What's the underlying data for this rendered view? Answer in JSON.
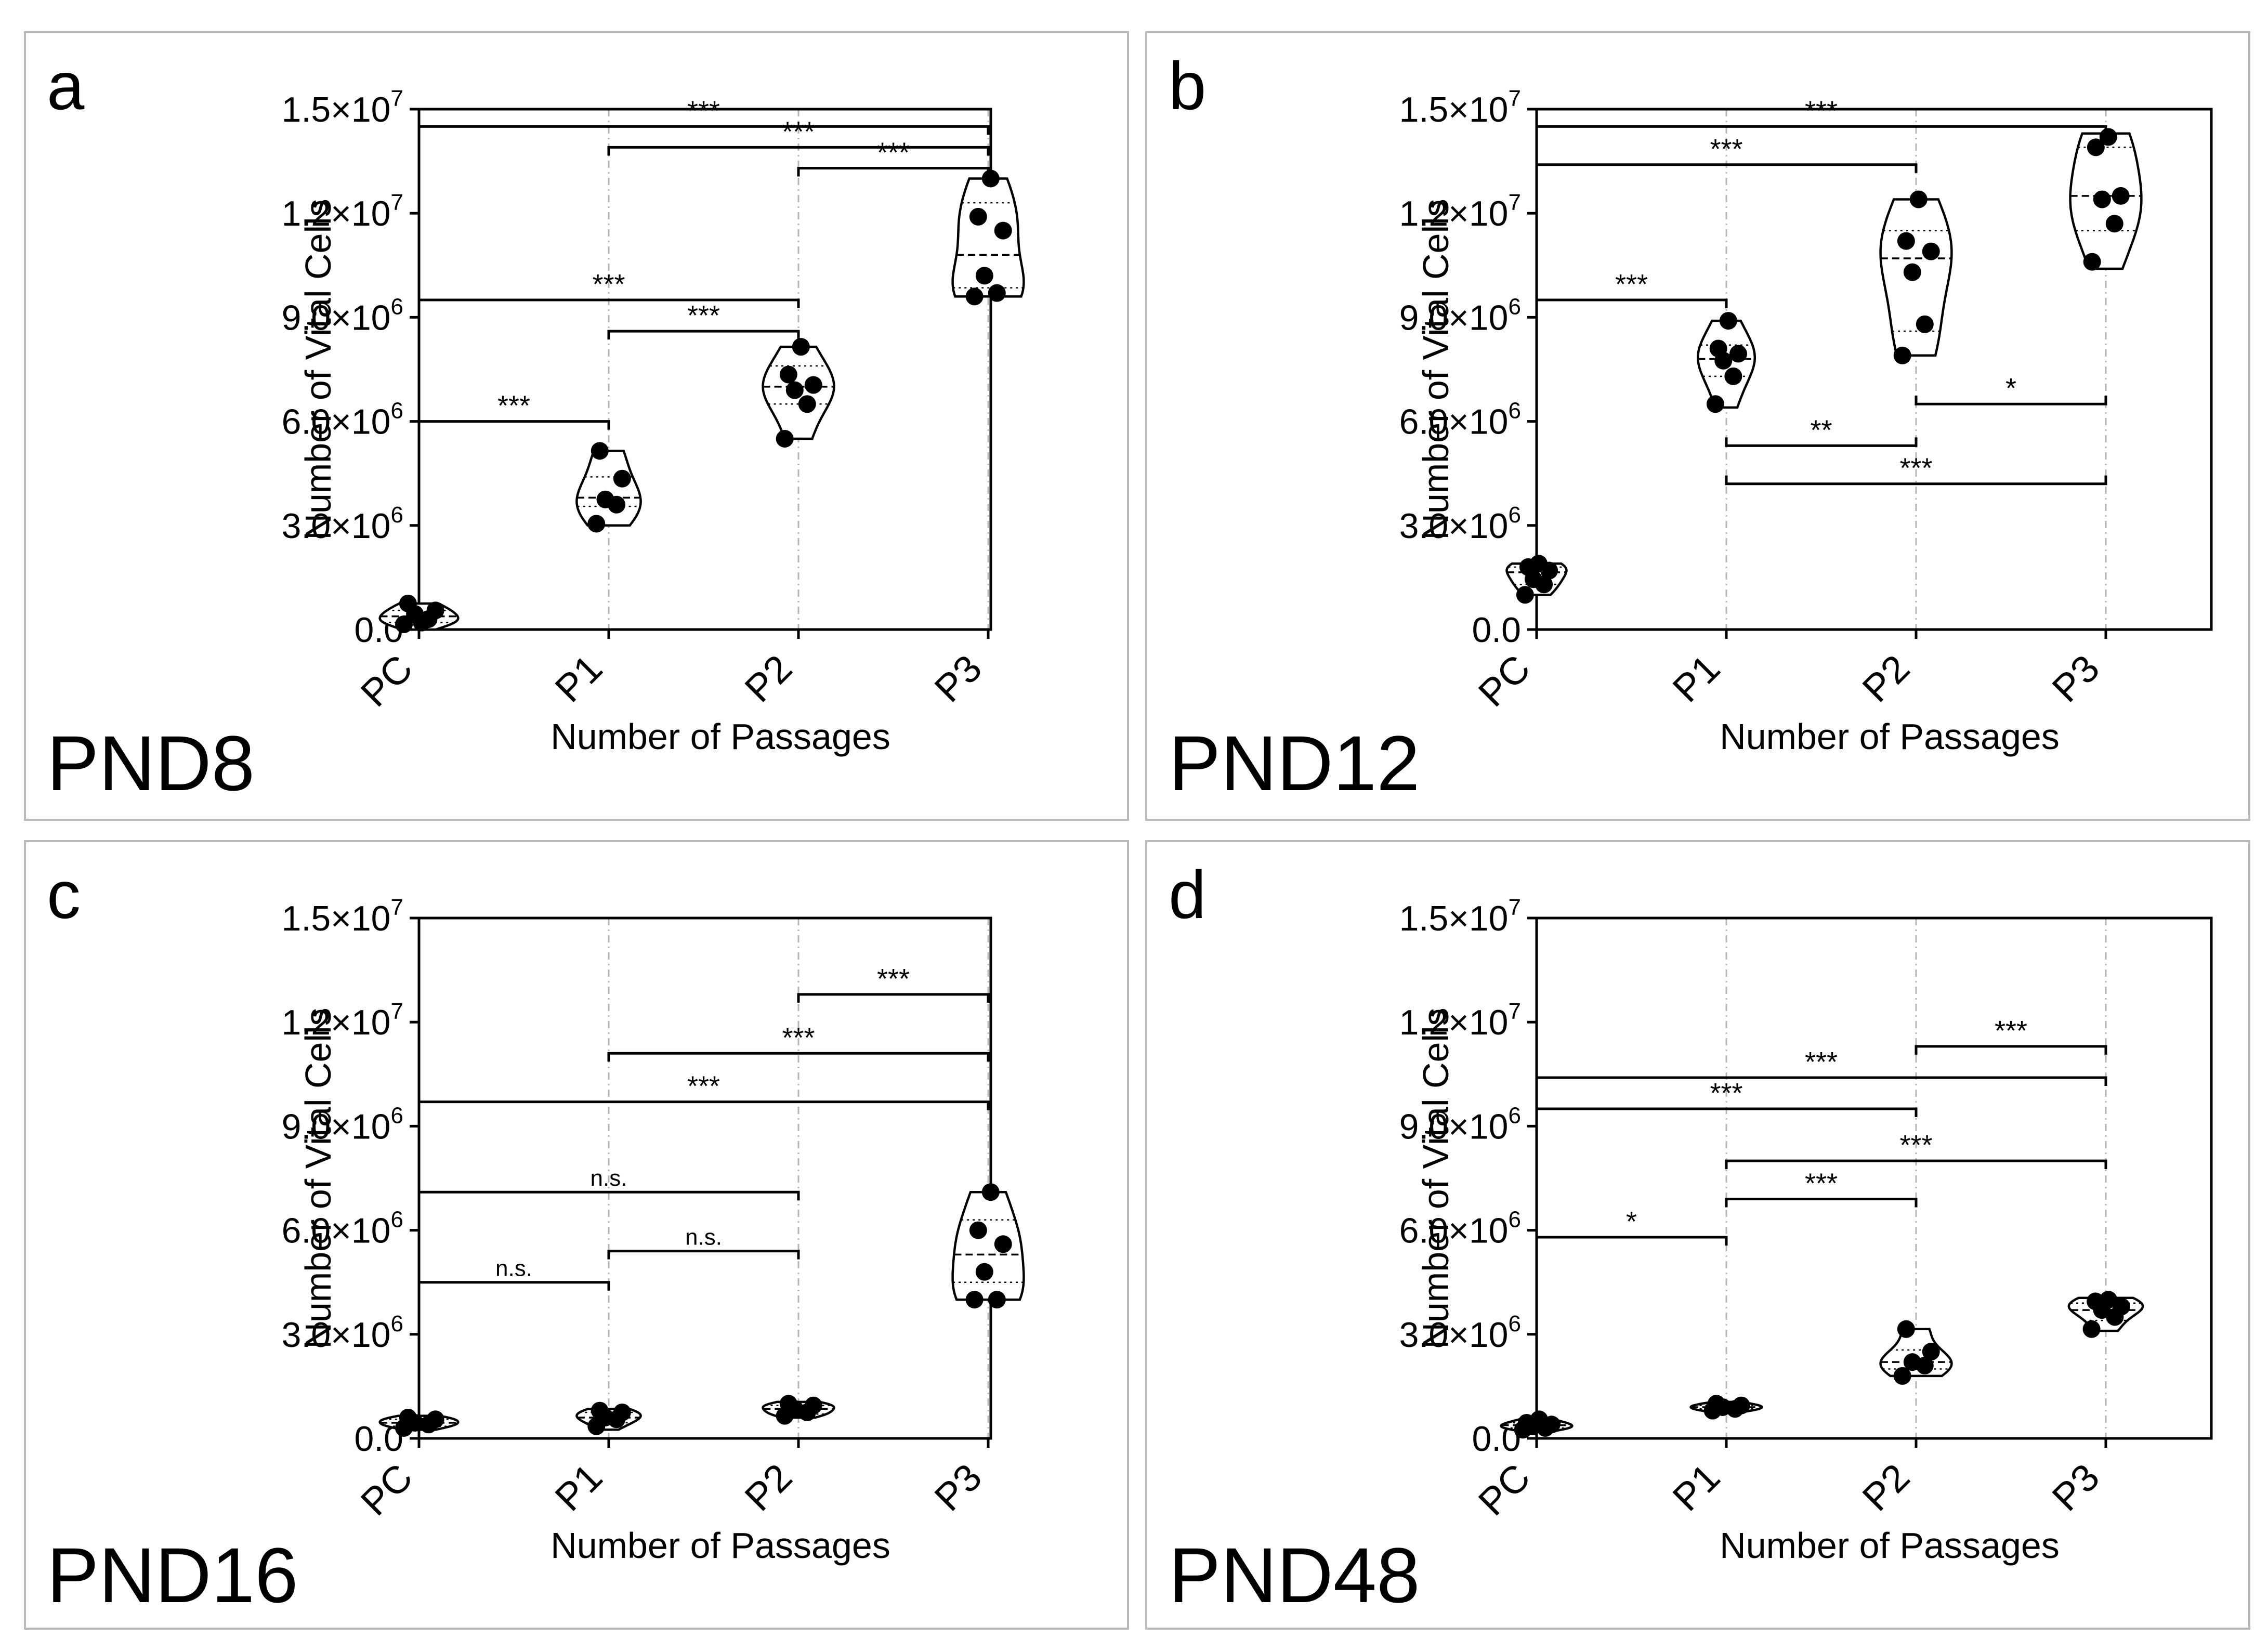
{
  "figure": {
    "description_free": true
  },
  "chart_data": [
    {
      "type": "violin",
      "panel": "a",
      "day_label": "PND8",
      "xlabel": "Number of Passages",
      "ylabel": "Number of Vital Cells",
      "categories": [
        "PC",
        "P1",
        "P2",
        "P3"
      ],
      "ylim": [
        0,
        15000000
      ],
      "yticks": [
        {
          "value": 0,
          "label": "0.0",
          "exp": ""
        },
        {
          "value": 3000000,
          "label": "3.0×10",
          "exp": "6"
        },
        {
          "value": 6000000,
          "label": "6.0×10",
          "exp": "6"
        },
        {
          "value": 9000000,
          "label": "9.0×10",
          "exp": "6"
        },
        {
          "value": 12000000,
          "label": "1.2×10",
          "exp": "7"
        },
        {
          "value": 15000000,
          "label": "1.5×10",
          "exp": "7"
        }
      ],
      "groups": [
        {
          "name": "PC",
          "values": [
            150000,
            300000,
            450000,
            550000,
            750000,
            200000
          ],
          "min": 0,
          "max": 750000,
          "median": 380000,
          "q1": 200000,
          "q3": 550000,
          "width": 0.55
        },
        {
          "name": "P1",
          "values": [
            3050000,
            3600000,
            3750000,
            4350000,
            5150000
          ],
          "min": 3000000,
          "max": 5150000,
          "median": 3800000,
          "q1": 3550000,
          "q3": 4400000,
          "width": 0.45
        },
        {
          "name": "P2",
          "values": [
            5500000,
            6500000,
            6900000,
            7050000,
            7350000,
            8150000
          ],
          "min": 5500000,
          "max": 8150000,
          "median": 7000000,
          "q1": 6500000,
          "q3": 7600000,
          "width": 0.5
        },
        {
          "name": "P3",
          "values": [
            9600000,
            9700000,
            10200000,
            11500000,
            11900000,
            13000000
          ],
          "min": 9600000,
          "max": 13000000,
          "median": 10800000,
          "q1": 9850000,
          "q3": 12300000,
          "width": 0.5
        }
      ],
      "significance": [
        {
          "from": "PC",
          "to": "P1",
          "y": 6000000,
          "label": "***"
        },
        {
          "from": "P1",
          "to": "P2",
          "y": 8600000,
          "label": "***"
        },
        {
          "from": "PC",
          "to": "P2",
          "y": 9500000,
          "label": "***"
        },
        {
          "from": "P2",
          "to": "P3",
          "y": 13300000,
          "label": "***"
        },
        {
          "from": "P1",
          "to": "P3",
          "y": 13900000,
          "label": "***"
        },
        {
          "from": "PC",
          "to": "P3",
          "y": 14500000,
          "label": "***"
        }
      ]
    },
    {
      "type": "violin",
      "panel": "b",
      "day_label": "PND12",
      "xlabel": "Number of Passages",
      "ylabel": "Number of Vital Cells",
      "categories": [
        "PC",
        "P1",
        "P2",
        "P3"
      ],
      "ylim": [
        0,
        15000000
      ],
      "yticks": [
        {
          "value": 0,
          "label": "0.0",
          "exp": ""
        },
        {
          "value": 3000000,
          "label": "3.0×10",
          "exp": "6"
        },
        {
          "value": 6000000,
          "label": "6.0×10",
          "exp": "6"
        },
        {
          "value": 9000000,
          "label": "9.0×10",
          "exp": "6"
        },
        {
          "value": 12000000,
          "label": "1.2×10",
          "exp": "7"
        },
        {
          "value": 15000000,
          "label": "1.5×10",
          "exp": "7"
        }
      ],
      "groups": [
        {
          "name": "PC",
          "values": [
            1000000,
            1300000,
            1450000,
            1700000,
            1800000,
            1900000
          ],
          "min": 1000000,
          "max": 1900000,
          "median": 1650000,
          "q1": 1300000,
          "q3": 1800000,
          "width": 0.42
        },
        {
          "name": "P1",
          "values": [
            6500000,
            7300000,
            7750000,
            7950000,
            8100000,
            8900000
          ],
          "min": 6400000,
          "max": 8900000,
          "median": 7800000,
          "q1": 7300000,
          "q3": 8200000,
          "width": 0.4
        },
        {
          "name": "P2",
          "values": [
            7900000,
            8800000,
            10300000,
            10900000,
            11200000,
            12400000
          ],
          "min": 7900000,
          "max": 12400000,
          "median": 10700000,
          "q1": 8600000,
          "q3": 11500000,
          "width": 0.5
        },
        {
          "name": "P3",
          "values": [
            10600000,
            11700000,
            12400000,
            12500000,
            13900000,
            14200000
          ],
          "min": 10400000,
          "max": 14300000,
          "median": 12500000,
          "q1": 11500000,
          "q3": 13900000,
          "width": 0.5
        }
      ],
      "significance": [
        {
          "from": "PC",
          "to": "P1",
          "y": 9500000,
          "label": "***"
        },
        {
          "from": "PC",
          "to": "P2",
          "y": 13400000,
          "label": "***"
        },
        {
          "from": "PC",
          "to": "P3",
          "y": 14500000,
          "label": "***"
        },
        {
          "from": "P2",
          "to": "P3",
          "y": 6500000,
          "label": "*",
          "below": true
        },
        {
          "from": "P1",
          "to": "P2",
          "y": 5300000,
          "label": "**",
          "below": true
        },
        {
          "from": "P1",
          "to": "P3",
          "y": 4200000,
          "label": "***",
          "below": true
        }
      ]
    },
    {
      "type": "violin",
      "panel": "c",
      "day_label": "PND16",
      "xlabel": "Number of Passages",
      "ylabel": "Number of Vital Cells",
      "categories": [
        "PC",
        "P1",
        "P2",
        "P3"
      ],
      "ylim": [
        0,
        15000000
      ],
      "yticks": [
        {
          "value": 0,
          "label": "0.0",
          "exp": ""
        },
        {
          "value": 3000000,
          "label": "3.0×10",
          "exp": "6"
        },
        {
          "value": 6000000,
          "label": "6.0×10",
          "exp": "6"
        },
        {
          "value": 9000000,
          "label": "9.0×10",
          "exp": "6"
        },
        {
          "value": 12000000,
          "label": "1.2×10",
          "exp": "7"
        },
        {
          "value": 15000000,
          "label": "1.5×10",
          "exp": "7"
        }
      ],
      "groups": [
        {
          "name": "PC",
          "values": [
            300000,
            400000,
            450000,
            550000,
            600000
          ],
          "min": 250000,
          "max": 650000,
          "median": 450000,
          "q1": 350000,
          "q3": 550000,
          "width": 0.55
        },
        {
          "name": "P1",
          "values": [
            350000,
            550000,
            600000,
            750000,
            800000
          ],
          "min": 250000,
          "max": 850000,
          "median": 600000,
          "q1": 450000,
          "q3": 750000,
          "width": 0.45
        },
        {
          "name": "P2",
          "values": [
            650000,
            750000,
            850000,
            950000,
            1000000
          ],
          "min": 600000,
          "max": 1050000,
          "median": 850000,
          "q1": 700000,
          "q3": 950000,
          "width": 0.5
        },
        {
          "name": "P3",
          "values": [
            4000000,
            4000000,
            4800000,
            5600000,
            6000000,
            7100000
          ],
          "min": 4000000,
          "max": 7100000,
          "median": 5300000,
          "q1": 4500000,
          "q3": 6300000,
          "width": 0.5
        }
      ],
      "significance": [
        {
          "from": "PC",
          "to": "P1",
          "y": 4500000,
          "label": "n.s."
        },
        {
          "from": "P1",
          "to": "P2",
          "y": 5400000,
          "label": "n.s."
        },
        {
          "from": "PC",
          "to": "P2",
          "y": 7100000,
          "label": "n.s."
        },
        {
          "from": "PC",
          "to": "P3",
          "y": 9700000,
          "label": "***"
        },
        {
          "from": "P1",
          "to": "P3",
          "y": 11100000,
          "label": "***"
        },
        {
          "from": "P2",
          "to": "P3",
          "y": 12800000,
          "label": "***"
        }
      ]
    },
    {
      "type": "violin",
      "panel": "d",
      "day_label": "PND48",
      "xlabel": "Number of Passages",
      "ylabel": "Number of Vital Cells",
      "categories": [
        "PC",
        "P1",
        "P2",
        "P3"
      ],
      "ylim": [
        0,
        15000000
      ],
      "yticks": [
        {
          "value": 0,
          "label": "0.0",
          "exp": ""
        },
        {
          "value": 3000000,
          "label": "3.0×10",
          "exp": "6"
        },
        {
          "value": 6000000,
          "label": "6.0×10",
          "exp": "6"
        },
        {
          "value": 9000000,
          "label": "9.0×10",
          "exp": "6"
        },
        {
          "value": 12000000,
          "label": "1.2×10",
          "exp": "7"
        },
        {
          "value": 15000000,
          "label": "1.5×10",
          "exp": "7"
        }
      ],
      "groups": [
        {
          "name": "PC",
          "values": [
            250000,
            300000,
            350000,
            400000,
            450000,
            550000
          ],
          "min": 200000,
          "max": 550000,
          "median": 380000,
          "q1": 300000,
          "q3": 450000,
          "width": 0.5
        },
        {
          "name": "P1",
          "values": [
            800000,
            850000,
            900000,
            950000,
            1000000
          ],
          "min": 750000,
          "max": 1050000,
          "median": 900000,
          "q1": 850000,
          "q3": 950000,
          "width": 0.5
        },
        {
          "name": "P2",
          "values": [
            1800000,
            2100000,
            2200000,
            2500000,
            3150000
          ],
          "min": 1800000,
          "max": 3150000,
          "median": 2200000,
          "q1": 2000000,
          "q3": 2550000,
          "width": 0.5
        },
        {
          "name": "P3",
          "values": [
            3150000,
            3500000,
            3700000,
            3800000,
            3950000,
            4000000
          ],
          "min": 3100000,
          "max": 4050000,
          "median": 3700000,
          "q1": 3400000,
          "q3": 3900000,
          "width": 0.52
        }
      ],
      "significance": [
        {
          "from": "PC",
          "to": "P1",
          "y": 5800000,
          "label": "*"
        },
        {
          "from": "P1",
          "to": "P2",
          "y": 6900000,
          "label": "***"
        },
        {
          "from": "P1",
          "to": "P3",
          "y": 8000000,
          "label": "***"
        },
        {
          "from": "PC",
          "to": "P2",
          "y": 9500000,
          "label": "***"
        },
        {
          "from": "PC",
          "to": "P3",
          "y": 10400000,
          "label": "***"
        },
        {
          "from": "P2",
          "to": "P3",
          "y": 11300000,
          "label": "***"
        }
      ]
    }
  ]
}
